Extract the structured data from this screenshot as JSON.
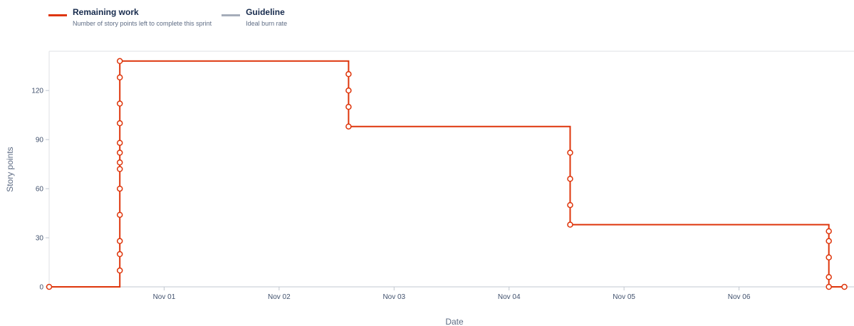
{
  "legend": {
    "items": [
      {
        "title": "Remaining work",
        "description": "Number of story points left to complete this sprint",
        "color": "#de350b"
      },
      {
        "title": "Guideline",
        "description": "Ideal burn rate",
        "color": "#a5adba"
      }
    ]
  },
  "chart_data": {
    "type": "line",
    "step": true,
    "xlabel": "Date",
    "ylabel": "Story points",
    "x_tick_labels": [
      "Nov 01",
      "Nov 02",
      "Nov 03",
      "Nov 04",
      "Nov 05",
      "Nov 06"
    ],
    "y_ticks": [
      0,
      30,
      60,
      90,
      120
    ],
    "xlim": [
      "2024-10-31T00:00",
      "2024-11-07T00:00"
    ],
    "ylim": [
      0,
      144
    ],
    "grid": false,
    "series": [
      {
        "name": "Remaining work",
        "color": "#de350b",
        "points": [
          {
            "x": "2024-10-31T00:00",
            "y": 0
          },
          {
            "x": "2024-10-31T14:45",
            "y": 10
          },
          {
            "x": "2024-10-31T14:45",
            "y": 20
          },
          {
            "x": "2024-10-31T14:45",
            "y": 28
          },
          {
            "x": "2024-10-31T14:45",
            "y": 44
          },
          {
            "x": "2024-10-31T14:45",
            "y": 60
          },
          {
            "x": "2024-10-31T14:45",
            "y": 72
          },
          {
            "x": "2024-10-31T14:45",
            "y": 76
          },
          {
            "x": "2024-10-31T14:45",
            "y": 82
          },
          {
            "x": "2024-10-31T14:45",
            "y": 88
          },
          {
            "x": "2024-10-31T14:45",
            "y": 100
          },
          {
            "x": "2024-10-31T14:45",
            "y": 112
          },
          {
            "x": "2024-10-31T14:45",
            "y": 128
          },
          {
            "x": "2024-10-31T14:45",
            "y": 138
          },
          {
            "x": "2024-11-02T14:30",
            "y": 130
          },
          {
            "x": "2024-11-02T14:30",
            "y": 120
          },
          {
            "x": "2024-11-02T14:30",
            "y": 110
          },
          {
            "x": "2024-11-02T14:30",
            "y": 98
          },
          {
            "x": "2024-11-04T12:45",
            "y": 82
          },
          {
            "x": "2024-11-04T12:45",
            "y": 66
          },
          {
            "x": "2024-11-04T12:45",
            "y": 50
          },
          {
            "x": "2024-11-04T12:45",
            "y": 38
          },
          {
            "x": "2024-11-06T18:45",
            "y": 34
          },
          {
            "x": "2024-11-06T18:45",
            "y": 28
          },
          {
            "x": "2024-11-06T18:45",
            "y": 18
          },
          {
            "x": "2024-11-06T18:45",
            "y": 6
          },
          {
            "x": "2024-11-06T18:45",
            "y": 0
          },
          {
            "x": "2024-11-06T22:00",
            "y": 0
          }
        ]
      }
    ]
  }
}
